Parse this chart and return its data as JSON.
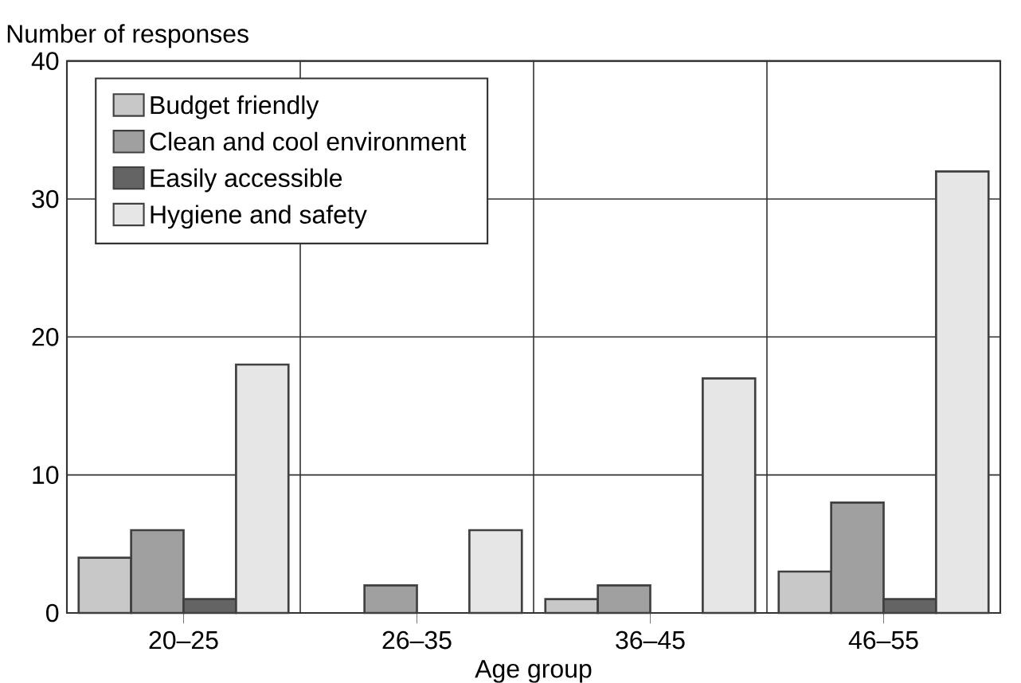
{
  "chart_data": {
    "type": "bar",
    "ylabel": "Number of responses",
    "xlabel": "Age group",
    "categories": [
      "20–25",
      "26–35",
      "36–45",
      "46–55"
    ],
    "series": [
      {
        "name": "Budget friendly",
        "color": "#c8c8c8",
        "values": [
          4,
          null,
          1,
          3
        ]
      },
      {
        "name": "Clean and cool environment",
        "color": "#a0a0a0",
        "values": [
          6,
          2,
          2,
          8
        ]
      },
      {
        "name": "Easily accessible",
        "color": "#646464",
        "values": [
          1,
          null,
          null,
          1
        ]
      },
      {
        "name": "Hygiene and safety",
        "color": "#e6e6e6",
        "values": [
          18,
          6,
          17,
          32
        ]
      }
    ],
    "ylim": [
      0,
      40
    ],
    "yticks": [
      0,
      10,
      20,
      30,
      40
    ],
    "grid": true,
    "legend": "top left"
  }
}
